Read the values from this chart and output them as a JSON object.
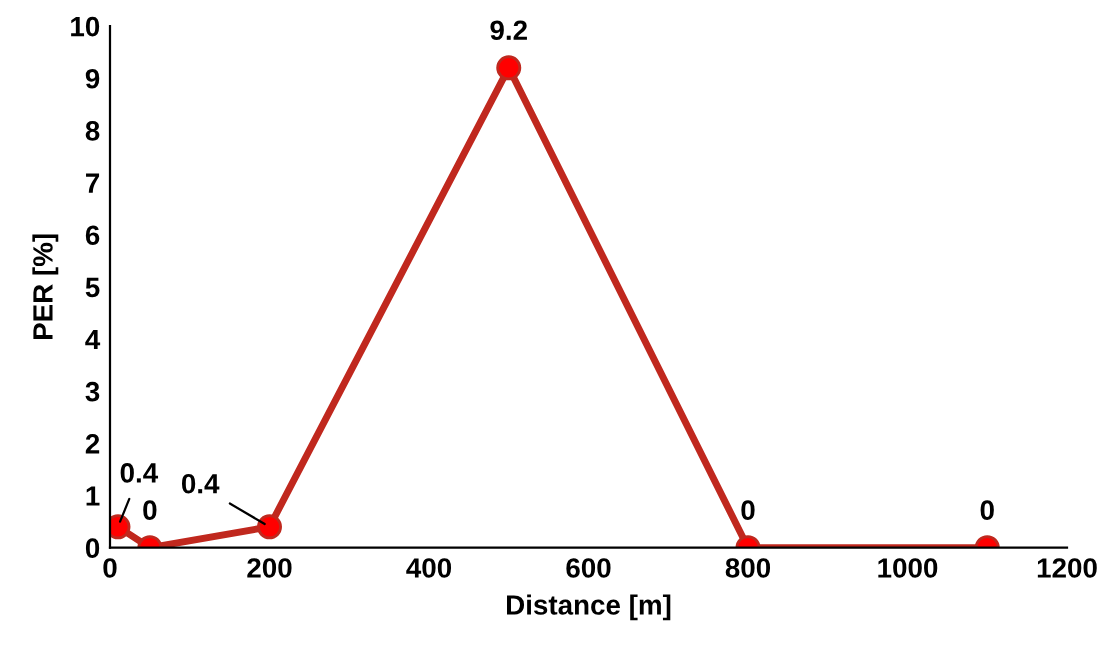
{
  "chart_data": {
    "type": "line",
    "xlabel": "Distance [m]",
    "ylabel": "PER [%]",
    "x": [
      10,
      50,
      200,
      500,
      800,
      1100
    ],
    "series": [
      {
        "color": "#c0281e",
        "values": [
          0.4,
          0,
          0.4,
          9.2,
          0,
          0
        ]
      }
    ],
    "marker": "circle",
    "line_style": "solid",
    "data_labels": true,
    "grid": false,
    "legend": false,
    "xlim": [
      0,
      1200
    ],
    "xticks": [
      0,
      200,
      400,
      600,
      800,
      1000,
      1200
    ],
    "ylim": [
      0,
      10
    ],
    "yticks": [
      0,
      1,
      2,
      3,
      4,
      5,
      6,
      7,
      8,
      9,
      10
    ]
  }
}
